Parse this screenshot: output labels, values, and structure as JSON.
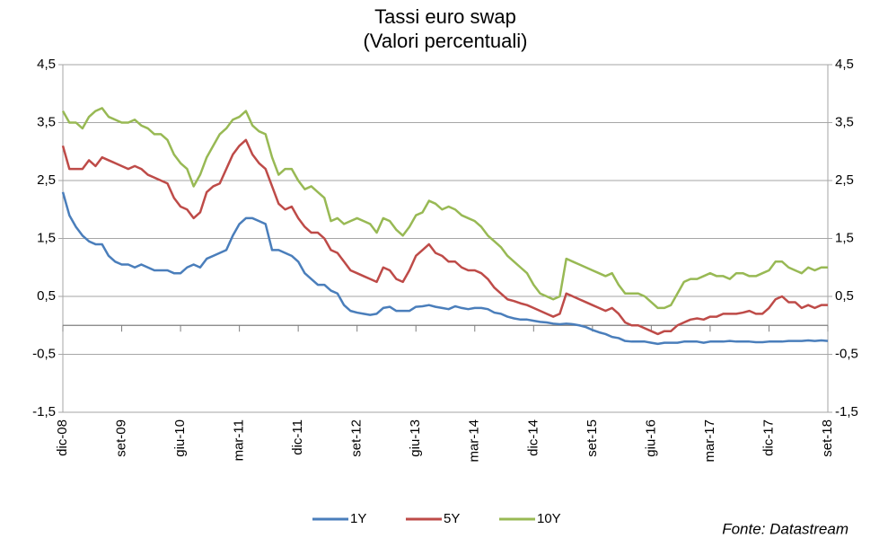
{
  "chart_data": {
    "type": "line",
    "title": "Tassi euro swap",
    "subtitle": "(Valori percentuali)",
    "source": "Fonte: Datastream",
    "categories": [
      "dic-08",
      null,
      null,
      null,
      null,
      null,
      null,
      null,
      null,
      "set-09",
      null,
      null,
      null,
      null,
      null,
      null,
      null,
      null,
      "giu-10",
      null,
      null,
      null,
      null,
      null,
      null,
      null,
      null,
      "mar-11",
      null,
      null,
      null,
      null,
      null,
      null,
      null,
      null,
      "dic-11",
      null,
      null,
      null,
      null,
      null,
      null,
      null,
      null,
      "set-12",
      null,
      null,
      null,
      null,
      null,
      null,
      null,
      null,
      "giu-13",
      null,
      null,
      null,
      null,
      null,
      null,
      null,
      null,
      "mar-14",
      null,
      null,
      null,
      null,
      null,
      null,
      null,
      null,
      "dic-14",
      null,
      null,
      null,
      null,
      null,
      null,
      null,
      null,
      "set-15",
      null,
      null,
      null,
      null,
      null,
      null,
      null,
      null,
      "giu-16",
      null,
      null,
      null,
      null,
      null,
      null,
      null,
      null,
      "mar-17",
      null,
      null,
      null,
      null,
      null,
      null,
      null,
      null,
      "dic-17",
      null,
      null,
      null,
      null,
      null,
      null,
      null,
      null,
      "set-18"
    ],
    "series": [
      {
        "name": "1Y",
        "color": "#4a7ebb",
        "values": [
          2.3,
          1.9,
          1.7,
          1.55,
          1.45,
          1.4,
          1.4,
          1.2,
          1.1,
          1.05,
          1.05,
          1.0,
          1.05,
          1.0,
          0.95,
          0.95,
          0.95,
          0.9,
          0.9,
          1.0,
          1.05,
          1.0,
          1.15,
          1.2,
          1.25,
          1.3,
          1.55,
          1.75,
          1.85,
          1.85,
          1.8,
          1.75,
          1.3,
          1.3,
          1.25,
          1.2,
          1.1,
          0.9,
          0.8,
          0.7,
          0.7,
          0.6,
          0.55,
          0.35,
          0.25,
          0.22,
          0.2,
          0.18,
          0.2,
          0.3,
          0.32,
          0.25,
          0.25,
          0.25,
          0.32,
          0.33,
          0.35,
          0.32,
          0.3,
          0.28,
          0.33,
          0.3,
          0.28,
          0.3,
          0.3,
          0.28,
          0.22,
          0.2,
          0.15,
          0.12,
          0.1,
          0.1,
          0.08,
          0.06,
          0.05,
          0.03,
          0.02,
          0.03,
          0.02,
          0.0,
          -0.03,
          -0.08,
          -0.12,
          -0.15,
          -0.2,
          -0.22,
          -0.27,
          -0.28,
          -0.28,
          -0.28,
          -0.3,
          -0.32,
          -0.3,
          -0.3,
          -0.3,
          -0.28,
          -0.28,
          -0.28,
          -0.3,
          -0.28,
          -0.28,
          -0.28,
          -0.27,
          -0.28,
          -0.28,
          -0.28,
          -0.29,
          -0.29,
          -0.28,
          -0.28,
          -0.28,
          -0.27,
          -0.27,
          -0.27,
          -0.26,
          -0.27,
          -0.26,
          -0.27
        ]
      },
      {
        "name": "5Y",
        "color": "#be4b48",
        "values": [
          3.1,
          2.7,
          2.7,
          2.7,
          2.85,
          2.75,
          2.9,
          2.85,
          2.8,
          2.75,
          2.7,
          2.75,
          2.7,
          2.6,
          2.55,
          2.5,
          2.45,
          2.2,
          2.05,
          2.0,
          1.85,
          1.95,
          2.3,
          2.4,
          2.45,
          2.7,
          2.95,
          3.1,
          3.2,
          2.95,
          2.8,
          2.7,
          2.4,
          2.1,
          2.0,
          2.05,
          1.85,
          1.7,
          1.6,
          1.6,
          1.5,
          1.3,
          1.25,
          1.1,
          0.95,
          0.9,
          0.85,
          0.8,
          0.75,
          1.0,
          0.95,
          0.8,
          0.75,
          0.95,
          1.2,
          1.3,
          1.4,
          1.25,
          1.2,
          1.1,
          1.1,
          1.0,
          0.95,
          0.95,
          0.9,
          0.8,
          0.65,
          0.55,
          0.45,
          0.42,
          0.38,
          0.35,
          0.3,
          0.25,
          0.2,
          0.15,
          0.2,
          0.55,
          0.5,
          0.45,
          0.4,
          0.35,
          0.3,
          0.25,
          0.3,
          0.2,
          0.05,
          0.0,
          0.0,
          -0.05,
          -0.1,
          -0.15,
          -0.1,
          -0.1,
          0.0,
          0.05,
          0.1,
          0.12,
          0.1,
          0.15,
          0.15,
          0.2,
          0.2,
          0.2,
          0.22,
          0.25,
          0.2,
          0.2,
          0.3,
          0.45,
          0.5,
          0.4,
          0.4,
          0.3,
          0.35,
          0.3,
          0.35,
          0.35
        ]
      },
      {
        "name": "10Y",
        "color": "#98b954",
        "values": [
          3.7,
          3.5,
          3.5,
          3.4,
          3.6,
          3.7,
          3.75,
          3.6,
          3.55,
          3.5,
          3.5,
          3.55,
          3.45,
          3.4,
          3.3,
          3.3,
          3.2,
          2.95,
          2.8,
          2.7,
          2.4,
          2.6,
          2.9,
          3.1,
          3.3,
          3.4,
          3.55,
          3.6,
          3.7,
          3.45,
          3.35,
          3.3,
          2.9,
          2.6,
          2.7,
          2.7,
          2.5,
          2.35,
          2.4,
          2.3,
          2.2,
          1.8,
          1.85,
          1.75,
          1.8,
          1.85,
          1.8,
          1.75,
          1.6,
          1.85,
          1.8,
          1.65,
          1.55,
          1.7,
          1.9,
          1.95,
          2.15,
          2.1,
          2.0,
          2.05,
          2.0,
          1.9,
          1.85,
          1.8,
          1.7,
          1.55,
          1.45,
          1.35,
          1.2,
          1.1,
          1.0,
          0.9,
          0.7,
          0.55,
          0.5,
          0.45,
          0.5,
          1.15,
          1.1,
          1.05,
          1.0,
          0.95,
          0.9,
          0.85,
          0.9,
          0.7,
          0.55,
          0.55,
          0.55,
          0.5,
          0.4,
          0.3,
          0.3,
          0.35,
          0.55,
          0.75,
          0.8,
          0.8,
          0.85,
          0.9,
          0.85,
          0.85,
          0.8,
          0.9,
          0.9,
          0.85,
          0.85,
          0.9,
          0.95,
          1.1,
          1.1,
          1.0,
          0.95,
          0.9,
          1.0,
          0.95,
          1.0,
          1.0
        ]
      }
    ],
    "ylim": [
      -1.5,
      4.5
    ],
    "yticks": [
      {
        "value": -1.5,
        "label": "-1,5"
      },
      {
        "value": -0.5,
        "label": "-0,5"
      },
      {
        "value": 0.5,
        "label": "0,5"
      },
      {
        "value": 1.5,
        "label": "1,5"
      },
      {
        "value": 2.5,
        "label": "2,5"
      },
      {
        "value": 3.5,
        "label": "3,5"
      },
      {
        "value": 4.5,
        "label": "4,5"
      }
    ],
    "y2lim": [
      -1.5,
      4.5
    ],
    "y2ticks": [
      {
        "value": -1.5,
        "label": "-1,5"
      },
      {
        "value": -0.5,
        "label": "-0,5"
      },
      {
        "value": 0.5,
        "label": "0,5"
      },
      {
        "value": 1.5,
        "label": "1,5"
      },
      {
        "value": 2.5,
        "label": "2,5"
      },
      {
        "value": 3.5,
        "label": "3,5"
      },
      {
        "value": 4.5,
        "label": "4,5"
      }
    ],
    "grid": true,
    "legend": "bottom"
  }
}
